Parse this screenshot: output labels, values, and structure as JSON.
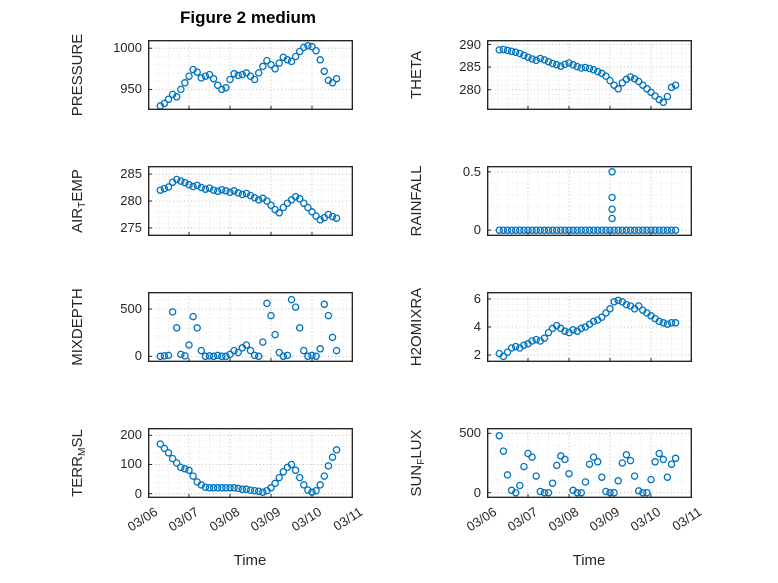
{
  "chart_data": {
    "type": "scatter",
    "title": "Figure 2 medium",
    "marker": "open-circle",
    "color": "#0072BD",
    "grid": "major+minor dotted",
    "xlabel": "Time",
    "xlim": [
      6,
      11
    ],
    "xminor": 0.25,
    "xticks": [
      6,
      7,
      8,
      9,
      10,
      11
    ],
    "xtick_labels": [
      "03/06",
      "03/07",
      "03/08",
      "03/09",
      "03/10",
      "03/11"
    ],
    "x": [
      6.3,
      6.4,
      6.5,
      6.6,
      6.7,
      6.8,
      6.9,
      7.0,
      7.1,
      7.2,
      7.3,
      7.4,
      7.5,
      7.6,
      7.7,
      7.8,
      7.9,
      8.0,
      8.1,
      8.2,
      8.3,
      8.4,
      8.5,
      8.6,
      8.7,
      8.8,
      8.9,
      9.0,
      9.1,
      9.2,
      9.3,
      9.4,
      9.5,
      9.6,
      9.7,
      9.8,
      9.9,
      10.0,
      10.1,
      10.2,
      10.3,
      10.4,
      10.5,
      10.6
    ],
    "series": [
      {
        "id": "pressure",
        "label": {
          "pre": "PRESSURE",
          "sub": "",
          "post": ""
        },
        "ylim": [
          925,
          1010
        ],
        "yticks": [
          950,
          1000
        ],
        "ytick_labels": [
          "950",
          "1000"
        ],
        "yminor": 10,
        "values": [
          930,
          933,
          938,
          944,
          941,
          950,
          958,
          966,
          974,
          971,
          964,
          966,
          968,
          963,
          955,
          950,
          952,
          962,
          969,
          967,
          968,
          970,
          966,
          962,
          970,
          978,
          985,
          980,
          975,
          982,
          989,
          986,
          984,
          990,
          996,
          1001,
          1003,
          1002,
          997,
          986,
          972,
          961,
          958,
          963
        ]
      },
      {
        "id": "theta",
        "label": {
          "pre": "THETA",
          "sub": "",
          "post": ""
        },
        "ylim": [
          275.5,
          291
        ],
        "yticks": [
          280,
          285,
          290
        ],
        "ytick_labels": [
          "280",
          "285",
          "290"
        ],
        "yminor": 1,
        "values": [
          288.8,
          288.9,
          288.7,
          288.5,
          288.3,
          288.0,
          287.6,
          287.2,
          286.8,
          286.5,
          286.9,
          286.6,
          286.2,
          285.8,
          285.5,
          285.2,
          285.6,
          285.9,
          285.5,
          285.1,
          284.8,
          284.9,
          284.7,
          284.4,
          284.0,
          283.6,
          283.0,
          282.0,
          281.0,
          280.2,
          281.5,
          282.3,
          282.8,
          282.4,
          281.8,
          281.0,
          280.2,
          279.4,
          278.6,
          277.8,
          277.2,
          278.5,
          280.5,
          281.0
        ]
      },
      {
        "id": "air-temp",
        "label": {
          "pre": "AIR",
          "sub": "T",
          "post": "EMP"
        },
        "ylim": [
          273.5,
          286.5
        ],
        "yticks": [
          275,
          280,
          285
        ],
        "ytick_labels": [
          "275",
          "280",
          "285"
        ],
        "yminor": 1,
        "values": [
          282.0,
          282.3,
          282.6,
          283.5,
          284.0,
          283.7,
          283.4,
          283.0,
          282.7,
          282.9,
          282.5,
          282.2,
          282.4,
          282.0,
          281.8,
          282.1,
          281.9,
          281.6,
          281.9,
          281.5,
          281.2,
          281.4,
          281.0,
          280.6,
          280.2,
          280.5,
          280.0,
          279.2,
          278.4,
          277.8,
          278.8,
          279.6,
          280.2,
          280.8,
          280.4,
          279.6,
          278.8,
          278.0,
          277.2,
          276.5,
          276.9,
          277.5,
          277.1,
          276.8
        ]
      },
      {
        "id": "rainfall",
        "label": {
          "pre": "RAINFALL",
          "sub": "",
          "post": ""
        },
        "ylim": [
          -0.05,
          0.55
        ],
        "yticks": [
          0,
          0.5
        ],
        "ytick_labels": [
          "0",
          "0.5"
        ],
        "yminor": 0.1,
        "values": [
          0,
          0,
          0,
          0,
          0,
          0,
          0,
          0,
          0,
          0,
          0,
          0,
          0,
          0,
          0,
          0,
          0,
          0,
          0,
          0,
          0,
          0,
          0,
          0,
          0,
          0,
          0,
          0,
          0,
          0,
          0,
          0,
          0,
          0,
          0,
          0,
          0,
          0,
          0,
          0,
          0,
          0,
          0,
          0
        ],
        "extra": [
          [
            9.05,
            0.1
          ],
          [
            9.05,
            0.18
          ],
          [
            9.05,
            0.28
          ],
          [
            9.05,
            0.5
          ]
        ]
      },
      {
        "id": "mixdepth",
        "label": {
          "pre": "MIXDEPTH",
          "sub": "",
          "post": ""
        },
        "ylim": [
          -60,
          680
        ],
        "yticks": [
          0,
          500
        ],
        "ytick_labels": [
          "0",
          "500"
        ],
        "yminor": 100,
        "values": [
          0,
          5,
          10,
          470,
          300,
          20,
          5,
          120,
          420,
          300,
          60,
          0,
          5,
          0,
          10,
          0,
          0,
          20,
          60,
          40,
          90,
          120,
          60,
          10,
          0,
          150,
          560,
          430,
          230,
          40,
          0,
          10,
          600,
          520,
          300,
          60,
          0,
          10,
          0,
          80,
          550,
          430,
          200,
          60
        ]
      },
      {
        "id": "h2omixra",
        "label": {
          "pre": "H2OMIXRA",
          "sub": "",
          "post": ""
        },
        "ylim": [
          1.5,
          6.5
        ],
        "yticks": [
          2,
          4,
          6
        ],
        "ytick_labels": [
          "2",
          "4",
          "6"
        ],
        "yminor": 0.4,
        "values": [
          2.1,
          1.9,
          2.2,
          2.5,
          2.6,
          2.5,
          2.7,
          2.8,
          3.0,
          3.1,
          3.0,
          3.2,
          3.6,
          3.9,
          4.1,
          3.9,
          3.7,
          3.6,
          3.8,
          3.7,
          3.9,
          4.0,
          4.2,
          4.4,
          4.5,
          4.7,
          5.0,
          5.3,
          5.8,
          5.9,
          5.8,
          5.6,
          5.5,
          5.3,
          5.5,
          5.2,
          5.0,
          4.8,
          4.6,
          4.4,
          4.3,
          4.2,
          4.3,
          4.3
        ]
      },
      {
        "id": "terr-msl",
        "label": {
          "pre": "TERR",
          "sub": "M",
          "post": "SL"
        },
        "ylim": [
          -15,
          225
        ],
        "yticks": [
          0,
          100,
          200
        ],
        "ytick_labels": [
          "0",
          "100",
          "200"
        ],
        "yminor": 20,
        "values": [
          170,
          155,
          140,
          120,
          105,
          90,
          85,
          80,
          60,
          40,
          30,
          22,
          20,
          20,
          20,
          20,
          20,
          20,
          20,
          18,
          15,
          15,
          12,
          10,
          8,
          5,
          10,
          20,
          35,
          55,
          75,
          90,
          100,
          80,
          55,
          30,
          12,
          5,
          10,
          30,
          60,
          95,
          125,
          150
        ]
      },
      {
        "id": "sun-flux",
        "label": {
          "pre": "SUN",
          "sub": "F",
          "post": "LUX"
        },
        "ylim": [
          -45,
          545
        ],
        "yticks": [
          0,
          500
        ],
        "ytick_labels": [
          "0",
          "500"
        ],
        "yminor": 100,
        "values": [
          480,
          350,
          150,
          20,
          0,
          60,
          220,
          330,
          300,
          140,
          10,
          0,
          0,
          80,
          230,
          310,
          280,
          160,
          20,
          0,
          0,
          90,
          240,
          300,
          260,
          130,
          10,
          0,
          0,
          100,
          250,
          320,
          270,
          140,
          15,
          0,
          0,
          110,
          260,
          330,
          280,
          130,
          240,
          290
        ]
      }
    ]
  }
}
